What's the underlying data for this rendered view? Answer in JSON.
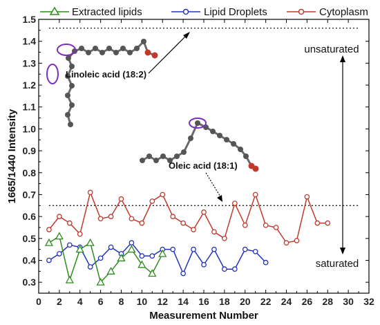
{
  "chart_data": {
    "type": "line",
    "xlabel": "Measurement Number",
    "ylabel": "1665/1440 Intensity",
    "xlim": [
      0,
      32
    ],
    "ylim": [
      0.25,
      1.5
    ],
    "xticks": [
      0,
      2,
      4,
      6,
      8,
      10,
      12,
      14,
      16,
      18,
      20,
      22,
      24,
      26,
      28,
      30,
      32
    ],
    "yticks": [
      0.3,
      0.4,
      0.5,
      0.6,
      0.7,
      0.8,
      0.9,
      1.0,
      1.1,
      1.2,
      1.3,
      1.4,
      1.5
    ],
    "ytick_labels": [
      "0.3",
      "0.4",
      "0.5",
      "0.6",
      "0.7",
      "0.8",
      "0.9",
      "1.0",
      "1.1",
      "1.2",
      "1.3",
      "1.4",
      "1.5"
    ],
    "legend_position": "top",
    "series": [
      {
        "name": "Extracted lipids",
        "color": "#2e8b1e",
        "marker": "triangle",
        "x": [
          1,
          2,
          3,
          4,
          5,
          6,
          7,
          8,
          9,
          10,
          11,
          12
        ],
        "y": [
          0.48,
          0.51,
          0.31,
          0.45,
          0.48,
          0.3,
          0.35,
          0.41,
          0.45,
          0.38,
          0.34,
          0.43
        ]
      },
      {
        "name": "Lipid Droplets",
        "color": "#2233bb",
        "marker": "circle",
        "x": [
          1,
          2,
          3,
          4,
          5,
          6,
          7,
          8,
          9,
          10,
          11,
          12,
          13,
          14,
          15,
          16,
          17,
          18,
          19,
          20,
          21,
          22
        ],
        "y": [
          0.4,
          0.43,
          0.47,
          0.46,
          0.37,
          0.41,
          0.46,
          0.43,
          0.48,
          0.42,
          0.42,
          0.45,
          0.45,
          0.34,
          0.45,
          0.38,
          0.45,
          0.36,
          0.36,
          0.45,
          0.44,
          0.39
        ]
      },
      {
        "name": "Cytoplasm",
        "color": "#c0392b",
        "marker": "circle",
        "x": [
          1,
          2,
          3,
          4,
          5,
          6,
          7,
          8,
          9,
          10,
          11,
          12,
          13,
          14,
          15,
          16,
          17,
          18,
          19,
          20,
          21,
          22,
          23,
          24,
          25,
          26,
          27,
          28
        ],
        "y": [
          0.54,
          0.6,
          0.57,
          0.52,
          0.71,
          0.59,
          0.6,
          0.68,
          0.59,
          0.57,
          0.67,
          0.7,
          0.6,
          0.57,
          0.54,
          0.62,
          0.53,
          0.5,
          0.66,
          0.56,
          0.7,
          0.56,
          0.55,
          0.48,
          0.49,
          0.69,
          0.57,
          0.57
        ]
      }
    ],
    "reference_lines": [
      {
        "y": 1.46,
        "x_range": [
          1,
          31
        ],
        "style": "dotted"
      },
      {
        "y": 0.65,
        "x_range": [
          1,
          31
        ],
        "style": "dotted"
      }
    ],
    "annotations": {
      "unsaturated": "unsaturated",
      "saturated": "saturated",
      "linoleic": "Linoleic acid (18:2)",
      "oleic": "Oleic acid (18:1)"
    }
  }
}
